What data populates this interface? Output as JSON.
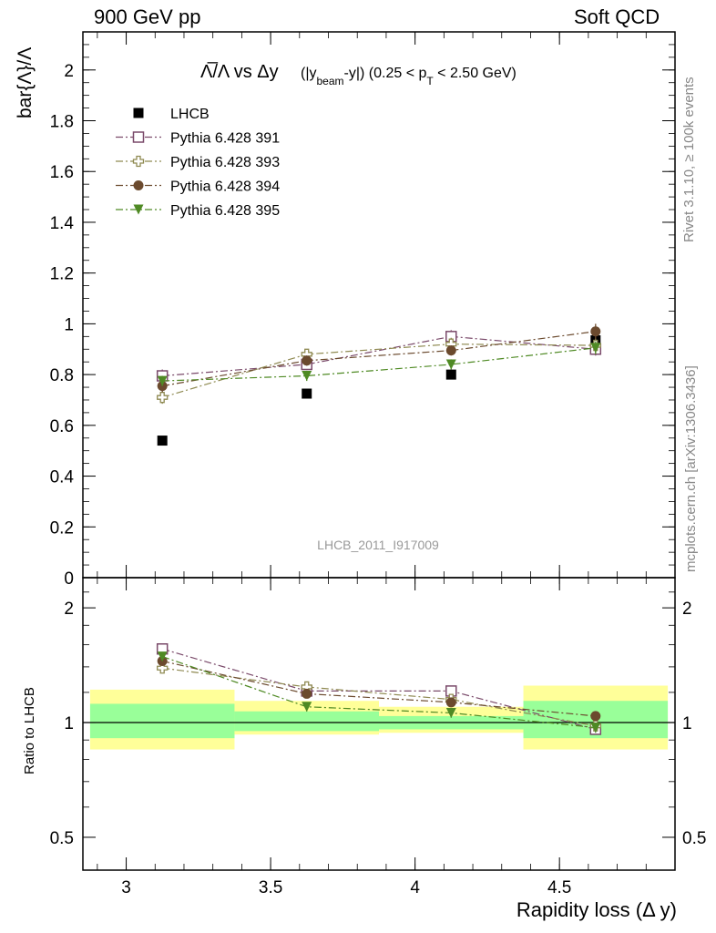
{
  "header": {
    "left": "900 GeV pp",
    "right": "Soft QCD"
  },
  "side_labels": {
    "rivet": "Rivet 3.1.10, ≥ 100k events",
    "mcplots": "mcplots.cern.ch [arXiv:1306.3436]"
  },
  "chart_data": [
    {
      "type": "scatter",
      "title_main": "Λ̅/Λ vs Δy",
      "title_sub": "(|y",
      "title_sub_beam": "beam",
      "title_sub_tail": "-y|) (0.25 < p",
      "title_sub_T": "T",
      "title_sub_end": " < 2.50 GeV)",
      "ylabel": "bar{Λ}/Λ",
      "watermark": "LHCB_2011_I917009",
      "ylim": [
        0,
        2.15
      ],
      "xlim": [
        2.85,
        4.9
      ],
      "yticks": [
        {
          "v": 0,
          "label": "0"
        },
        {
          "v": 0.2,
          "label": "0.2"
        },
        {
          "v": 0.4,
          "label": "0.4"
        },
        {
          "v": 0.6,
          "label": "0.6"
        },
        {
          "v": 0.8,
          "label": "0.8"
        },
        {
          "v": 1.0,
          "label": "1"
        },
        {
          "v": 1.2,
          "label": "1.2"
        },
        {
          "v": 1.4,
          "label": "1.4"
        },
        {
          "v": 1.6,
          "label": "1.6"
        },
        {
          "v": 1.8,
          "label": "1.8"
        },
        {
          "v": 2.0,
          "label": "2"
        }
      ],
      "x": [
        3.125,
        3.625,
        4.125,
        4.625
      ],
      "series": [
        {
          "name": "LHCB",
          "marker": "square-filled",
          "color": "#000000",
          "values": [
            0.54,
            0.725,
            0.8,
            0.935
          ],
          "errors": [
            0.01,
            0.01,
            0.01,
            0.01
          ]
        },
        {
          "name": "Pythia 6.428 391",
          "marker": "square-open",
          "color": "#7a4a6a",
          "values": [
            0.795,
            0.84,
            0.95,
            0.9
          ],
          "errors": [
            0.025,
            0.02,
            0.025,
            0.025
          ]
        },
        {
          "name": "Pythia 6.428 393",
          "marker": "cross-open",
          "color": "#8f8a52",
          "values": [
            0.71,
            0.88,
            0.92,
            0.915
          ],
          "errors": [
            0.025,
            0.02,
            0.025,
            0.03
          ]
        },
        {
          "name": "Pythia 6.428 394",
          "marker": "circle-filled",
          "color": "#6b4a2e",
          "values": [
            0.755,
            0.855,
            0.895,
            0.97
          ],
          "errors": [
            0.025,
            0.02,
            0.02,
            0.03
          ]
        },
        {
          "name": "Pythia 6.428 395",
          "marker": "triangle-down",
          "color": "#4f8a24",
          "values": [
            0.775,
            0.795,
            0.84,
            0.905
          ],
          "errors": [
            0.02,
            0.02,
            0.02,
            0.025
          ]
        }
      ]
    },
    {
      "type": "scatter",
      "ylabel": "Ratio to LHCB",
      "xlabel": "Rapidity loss (Δ y)",
      "scale": "log",
      "ylim": [
        0.41,
        2.4
      ],
      "xlim": [
        2.85,
        4.9
      ],
      "yticks": [
        {
          "v": 0.5,
          "label": "0.5"
        },
        {
          "v": 1,
          "label": "1"
        },
        {
          "v": 2,
          "label": "2"
        }
      ],
      "xticks": [
        {
          "v": 3,
          "label": "3"
        },
        {
          "v": 3.5,
          "label": "3.5"
        },
        {
          "v": 4,
          "label": "4"
        },
        {
          "v": 4.5,
          "label": "4.5"
        }
      ],
      "bands": [
        {
          "x": [
            2.875,
            3.375
          ],
          "yellow": [
            0.85,
            1.22
          ],
          "green": [
            0.91,
            1.12
          ]
        },
        {
          "x": [
            3.375,
            3.875
          ],
          "yellow": [
            0.93,
            1.14
          ],
          "green": [
            0.95,
            1.07
          ]
        },
        {
          "x": [
            3.875,
            4.375
          ],
          "yellow": [
            0.94,
            1.1
          ],
          "green": [
            0.96,
            1.04
          ]
        },
        {
          "x": [
            4.375,
            4.875
          ],
          "yellow": [
            0.85,
            1.25
          ],
          "green": [
            0.91,
            1.14
          ]
        }
      ],
      "series": [
        {
          "name": "Pythia 6.428 391",
          "values": [
            1.56,
            1.21,
            1.21,
            0.96
          ],
          "errors": [
            0.04,
            0.03,
            0.03,
            0.03
          ]
        },
        {
          "name": "Pythia 6.428 393",
          "values": [
            1.39,
            1.24,
            1.15,
            0.98
          ],
          "errors": [
            0.04,
            0.03,
            0.03,
            0.03
          ]
        },
        {
          "name": "Pythia 6.428 394",
          "values": [
            1.45,
            1.19,
            1.13,
            1.04
          ],
          "errors": [
            0.04,
            0.03,
            0.03,
            0.03
          ]
        },
        {
          "name": "Pythia 6.428 395",
          "values": [
            1.49,
            1.1,
            1.06,
            0.97
          ],
          "errors": [
            0.04,
            0.03,
            0.03,
            0.03
          ]
        }
      ]
    }
  ]
}
